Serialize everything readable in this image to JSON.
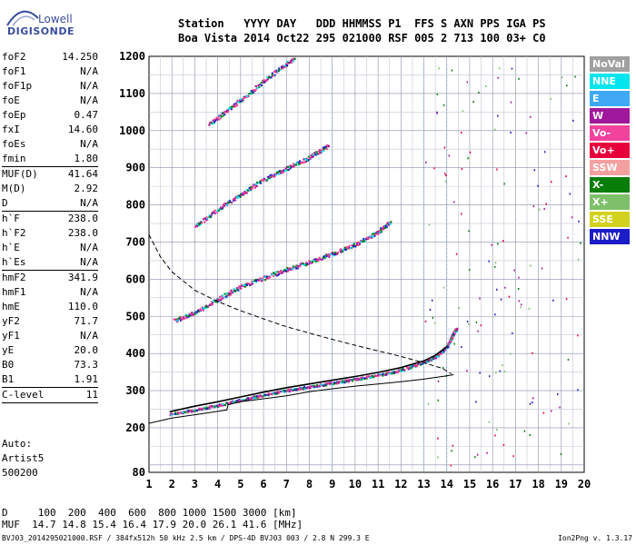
{
  "logo": {
    "line1": "Lowell",
    "line2": "DIGISONDE"
  },
  "header": {
    "labels": "Station   YYYY DAY   DDD HHMMSS P1  FFS S AXN PPS IGA PS",
    "values": "Boa Vista 2014 Oct22 295 021000 RSF 005 2 713 100 03+ C0"
  },
  "params": [
    {
      "k": "foF2",
      "v": "14.250"
    },
    {
      "k": "foF1",
      "v": "N/A"
    },
    {
      "k": "foF1p",
      "v": "N/A"
    },
    {
      "k": "foE",
      "v": "N/A"
    },
    {
      "k": "foEp",
      "v": "0.47"
    },
    {
      "k": "fxI",
      "v": "14.60"
    },
    {
      "k": "foEs",
      "v": "N/A"
    },
    {
      "k": "fmin",
      "v": "1.80"
    },
    {
      "sep": true
    },
    {
      "k": "MUF(D)",
      "v": "41.64"
    },
    {
      "k": "M(D)",
      "v": "2.92"
    },
    {
      "k": "D",
      "v": "N/A"
    },
    {
      "sep": true
    },
    {
      "k": "h`F",
      "v": "238.0"
    },
    {
      "k": "h`F2",
      "v": "238.0"
    },
    {
      "k": "h`E",
      "v": "N/A"
    },
    {
      "k": "h`Es",
      "v": "N/A"
    },
    {
      "sep": true
    },
    {
      "k": "hmF2",
      "v": "341.9"
    },
    {
      "k": "hmF1",
      "v": "N/A"
    },
    {
      "k": "hmE",
      "v": "110.0"
    },
    {
      "k": "yF2",
      "v": "71.7"
    },
    {
      "k": "yF1",
      "v": "N/A"
    },
    {
      "k": "yE",
      "v": "20.0"
    },
    {
      "k": "B0",
      "v": "73.3"
    },
    {
      "k": "B1",
      "v": "1.91"
    },
    {
      "sep": true
    },
    {
      "k": "C-level",
      "v": "11"
    },
    {
      "sep": true
    }
  ],
  "auto": {
    "line1": "Auto:",
    "line2": "Artist5",
    "line3": "500200"
  },
  "legend": [
    {
      "label": "NoVal",
      "color": "#a0a0a0"
    },
    {
      "label": "NNE",
      "color": "#00e5ee"
    },
    {
      "label": "E",
      "color": "#3fa9f5"
    },
    {
      "label": "W",
      "color": "#a0189c"
    },
    {
      "label": "Vo-",
      "color": "#f2429c"
    },
    {
      "label": "Vo+",
      "color": "#e8003c"
    },
    {
      "label": "SSW",
      "color": "#f5a0a0"
    },
    {
      "label": "X-",
      "color": "#087d08"
    },
    {
      "label": "X+",
      "color": "#7ec06a"
    },
    {
      "label": "SSE",
      "color": "#d2d21e"
    },
    {
      "label": "NNW",
      "color": "#1c1cc8"
    }
  ],
  "footer": {
    "line1": "D     100  200  400  600  800 1000 1500 3000 [km]",
    "line2": "MUF  14.7 14.8 15.4 16.4 17.9 20.0 26.1 41.6 [MHz]"
  },
  "fileline": "BVJ03_2014295021000.RSF / 384fx512h 50 kHz 2.5 km / DPS-4D BVJ03 003 / 2.8 N 299.3 E",
  "version": "Ion2Png v. 1.3.17",
  "chart_data": {
    "type": "scatter",
    "title": "",
    "xlabel": "",
    "ylabel": "",
    "xlim": [
      1,
      20
    ],
    "ylim": [
      80,
      1200
    ],
    "x_ticks": [
      1,
      2,
      3,
      4,
      5,
      6,
      7,
      8,
      9,
      10,
      11,
      12,
      13,
      14,
      15,
      16,
      17,
      18,
      19,
      20
    ],
    "y_ticks": [
      80,
      200,
      300,
      400,
      500,
      600,
      700,
      800,
      900,
      1000,
      1100,
      1200
    ],
    "grid": true,
    "traces": [
      {
        "name": "O-trace (1 hop)",
        "color": "#e0347c",
        "points": [
          [
            1.9,
            238
          ],
          [
            3,
            250
          ],
          [
            4,
            262
          ],
          [
            5,
            276
          ],
          [
            6,
            290
          ],
          [
            7,
            302
          ],
          [
            8,
            312
          ],
          [
            9,
            322
          ],
          [
            10,
            332
          ],
          [
            11,
            343
          ],
          [
            12,
            357
          ],
          [
            13,
            378
          ],
          [
            13.5,
            392
          ],
          [
            14,
            420
          ],
          [
            14.2,
            445
          ],
          [
            14.4,
            470
          ]
        ]
      },
      {
        "name": "O-trace (2 hop)",
        "color": "#e0347c",
        "points": [
          [
            2.1,
            490
          ],
          [
            3,
            512
          ],
          [
            4,
            548
          ],
          [
            5,
            582
          ],
          [
            6,
            605
          ],
          [
            7,
            628
          ],
          [
            8,
            648
          ],
          [
            9,
            670
          ],
          [
            10,
            695
          ],
          [
            11,
            730
          ],
          [
            11.5,
            755
          ]
        ]
      },
      {
        "name": "O-trace (3 hop)",
        "color": "#e0347c",
        "points": [
          [
            3,
            745
          ],
          [
            4,
            790
          ],
          [
            5,
            830
          ],
          [
            6,
            870
          ],
          [
            7,
            900
          ],
          [
            8,
            930
          ],
          [
            8.8,
            960
          ]
        ]
      },
      {
        "name": "O-trace (4 hop)",
        "color": "#e0347c",
        "points": [
          [
            3.6,
            1020
          ],
          [
            4.5,
            1060
          ],
          [
            5.5,
            1110
          ],
          [
            6.5,
            1160
          ],
          [
            7.3,
            1195
          ]
        ]
      }
    ],
    "profile_dashed": [
      [
        1,
        720
      ],
      [
        1.5,
        660
      ],
      [
        2,
        620
      ],
      [
        3,
        570
      ],
      [
        4,
        540
      ],
      [
        5,
        515
      ],
      [
        6,
        493
      ],
      [
        7,
        472
      ],
      [
        8,
        455
      ],
      [
        9,
        438
      ],
      [
        10,
        422
      ],
      [
        11,
        407
      ],
      [
        12,
        392
      ],
      [
        13,
        375
      ],
      [
        13.8,
        360
      ],
      [
        14.2,
        345
      ]
    ],
    "virtual_height_line": [
      [
        1,
        212
      ],
      [
        2,
        226
      ],
      [
        3,
        235
      ],
      [
        4,
        244
      ],
      [
        4.4,
        248
      ],
      [
        4.45,
        262
      ],
      [
        5,
        270
      ],
      [
        6,
        278
      ],
      [
        7,
        286
      ],
      [
        8,
        297
      ],
      [
        9,
        305
      ],
      [
        10,
        312
      ],
      [
        11,
        318
      ],
      [
        12,
        324
      ],
      [
        13,
        331
      ],
      [
        14,
        340
      ],
      [
        14.3,
        343
      ]
    ],
    "model_trace": [
      [
        1.9,
        243
      ],
      [
        3,
        258
      ],
      [
        4,
        270
      ],
      [
        5,
        283
      ],
      [
        6,
        296
      ],
      [
        7,
        308
      ],
      [
        8,
        318
      ],
      [
        9,
        328
      ],
      [
        10,
        338
      ],
      [
        11,
        349
      ],
      [
        12,
        362
      ],
      [
        13,
        380
      ],
      [
        13.5,
        395
      ],
      [
        14,
        418
      ]
    ],
    "foF2_marker": 14.25,
    "vertical_noise_lines": [
      9.0,
      13.0,
      14.0
    ]
  }
}
